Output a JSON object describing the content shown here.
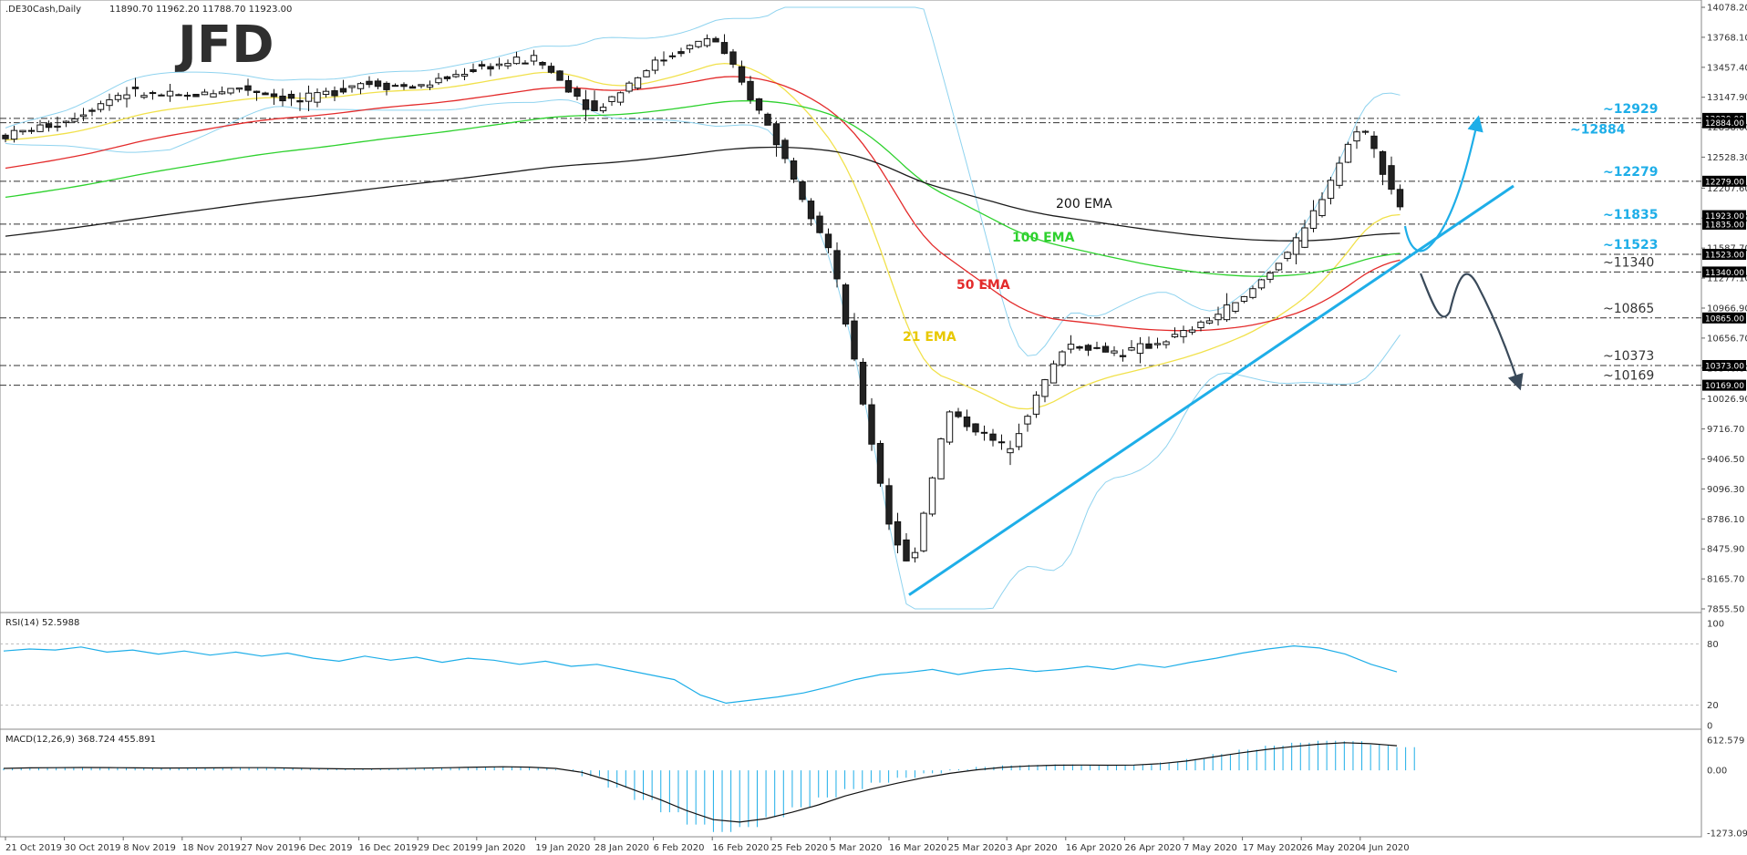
{
  "header": {
    "title": ".DE30Cash,Daily",
    "ohlc": "11890.70 11962.20 11788.70 11923.00",
    "logo": "JFD"
  },
  "colors": {
    "price_line": "#1eaee8",
    "support_line": "#1eaee8",
    "ema21": "#f1e14c",
    "ema50": "#e32b2b",
    "ema100": "#2ed12e",
    "ema200": "#1c1c1c",
    "bollinger": "#8fd3ef",
    "forecast_up": "#1eaee8",
    "forecast_down": "#3a4a5a",
    "label_accent": "#1eaee8",
    "label_dark": "#333333"
  },
  "chart_data": [
    {
      "type": "candlestick",
      "title": ".DE30Cash,Daily",
      "ylim": [
        7855.5,
        14078.2
      ],
      "y_ticks": [
        "14078.20",
        "13768.10",
        "13457.40",
        "13147.90",
        "12838.00",
        "12528.30",
        "12207.60",
        "11897.60",
        "11587.70",
        "11277.10",
        "10966.90",
        "10656.70",
        "10346.80",
        "10026.90",
        "9716.70",
        "9406.50",
        "9096.30",
        "8786.10",
        "8475.90",
        "8165.70",
        "7855.50"
      ],
      "x_ticks": [
        "21 Oct 2019",
        "30 Oct 2019",
        "8 Nov 2019",
        "18 Nov 2019",
        "27 Nov 2019",
        "6 Dec 2019",
        "16 Dec 2019",
        "29 Dec 2019",
        "9 Jan 2020",
        "19 Jan 2020",
        "28 Jan 2020",
        "6 Feb 2020",
        "16 Feb 2020",
        "25 Feb 2020",
        "5 Mar 2020",
        "16 Mar 2020",
        "25 Mar 2020",
        "3 Apr 2020",
        "16 Apr 2020",
        "26 Apr 2020",
        "7 May 2020",
        "17 May 2020",
        "26 May 2020",
        "4 Jun 2020"
      ],
      "price_keypoints": [
        {
          "date": "21 Oct 2019",
          "value": 12750
        },
        {
          "date": "30 Oct 2019",
          "value": 12900
        },
        {
          "date": "8 Nov 2019",
          "value": 13200
        },
        {
          "date": "18 Nov 2019",
          "value": 13150
        },
        {
          "date": "27 Nov 2019",
          "value": 13250
        },
        {
          "date": "6 Dec 2019",
          "value": 13100
        },
        {
          "date": "16 Dec 2019",
          "value": 13300
        },
        {
          "date": "29 Dec 2019",
          "value": 13250
        },
        {
          "date": "9 Jan 2020",
          "value": 13450
        },
        {
          "date": "19 Jan 2020",
          "value": 13550
        },
        {
          "date": "28 Jan 2020",
          "value": 13000
        },
        {
          "date": "6 Feb 2020",
          "value": 13500
        },
        {
          "date": "16 Feb 2020",
          "value": 13780
        },
        {
          "date": "25 Feb 2020",
          "value": 12800
        },
        {
          "date": "5 Mar 2020",
          "value": 11550
        },
        {
          "date": "16 Mar 2020",
          "value": 8750
        },
        {
          "date": "18 Mar 2020",
          "value": 8250
        },
        {
          "date": "25 Mar 2020",
          "value": 9900
        },
        {
          "date": "3 Apr 2020",
          "value": 9500
        },
        {
          "date": "16 Apr 2020",
          "value": 10600
        },
        {
          "date": "26 Apr 2020",
          "value": 10500
        },
        {
          "date": "7 May 2020",
          "value": 10700
        },
        {
          "date": "17 May 2020",
          "value": 11050
        },
        {
          "date": "26 May 2020",
          "value": 11700
        },
        {
          "date": "4 Jun 2020",
          "value": 12900
        },
        {
          "date": "10 Jun 2020",
          "value": 11923
        }
      ],
      "series": [
        {
          "name": "21 EMA",
          "label": "21 EMA"
        },
        {
          "name": "50 EMA",
          "label": "50 EMA"
        },
        {
          "name": "100 EMA",
          "label": "100 EMA"
        },
        {
          "name": "200 EMA",
          "label": "200 EMA"
        }
      ],
      "levels": [
        {
          "value": 12929,
          "label": "~12929",
          "box": "12929.00"
        },
        {
          "value": 12884,
          "label": "~12884",
          "box": "12884.00"
        },
        {
          "value": 12279,
          "label": "~12279",
          "box": "12279.00"
        },
        {
          "value": 11835,
          "label": "~11835",
          "box": "11835.00"
        },
        {
          "value": 11523,
          "label": "~11523",
          "box": "11523.00"
        },
        {
          "value": 11340,
          "label": "~11340",
          "box": "11340.00"
        },
        {
          "value": 10865,
          "label": "~10865",
          "box": "10865.00"
        },
        {
          "value": 10373,
          "label": "~10373",
          "box": "10373.00"
        },
        {
          "value": 10169,
          "label": "~10169",
          "box": "10169.00"
        }
      ],
      "current_price_box": "11923.00",
      "support_trendline": {
        "from": {
          "date": "18 Mar 2020",
          "value": 8000
        },
        "to": {
          "date": "4 Jun 2020+",
          "value": 12230
        }
      }
    },
    {
      "type": "line",
      "title": "RSI(14) 52.5988",
      "ylim": [
        0,
        100
      ],
      "y_ticks": [
        "100",
        "80",
        "20",
        "0"
      ],
      "levels": [
        80,
        20
      ],
      "values": [
        73,
        75,
        74,
        77,
        72,
        74,
        70,
        73,
        69,
        72,
        68,
        71,
        66,
        63,
        68,
        64,
        67,
        62,
        66,
        64,
        60,
        63,
        58,
        60,
        55,
        50,
        45,
        30,
        22,
        25,
        28,
        32,
        38,
        45,
        50,
        52,
        55,
        50,
        54,
        56,
        53,
        55,
        58,
        55,
        60,
        57,
        62,
        66,
        71,
        75,
        78,
        76,
        70,
        60,
        52.6
      ]
    },
    {
      "type": "bar",
      "title": "MACD(12,26,9) 368.724 455.891",
      "ylim": [
        -1273.091,
        612.579
      ],
      "y_ticks": [
        "612.579",
        "0.00",
        "-1273.091"
      ],
      "histogram": [
        40,
        55,
        60,
        62,
        58,
        50,
        45,
        48,
        52,
        60,
        55,
        42,
        30,
        20,
        25,
        35,
        50,
        60,
        70,
        80,
        60,
        20,
        -120,
        -350,
        -600,
        -850,
        -1100,
        -1250,
        -1150,
        -950,
        -750,
        -550,
        -380,
        -250,
        -150,
        -60,
        20,
        70,
        100,
        110,
        120,
        110,
        100,
        115,
        160,
        230,
        330,
        420,
        500,
        560,
        600,
        590,
        520,
        470
      ],
      "signal": [
        40,
        50,
        55,
        58,
        56,
        50,
        47,
        48,
        50,
        55,
        54,
        47,
        38,
        30,
        30,
        35,
        45,
        55,
        65,
        72,
        65,
        40,
        -40,
        -200,
        -400,
        -600,
        -820,
        -1000,
        -1050,
        -980,
        -850,
        -700,
        -520,
        -380,
        -260,
        -150,
        -60,
        10,
        60,
        90,
        105,
        108,
        105,
        108,
        135,
        190,
        270,
        350,
        420,
        480,
        530,
        560,
        540,
        500
      ]
    }
  ],
  "annotations": {
    "ema21_label": "21 EMA",
    "ema50_label": "50 EMA",
    "ema100_label": "100 EMA",
    "ema200_label": "200 EMA",
    "rsi_title": "RSI(14) 52.5988",
    "macd_title": "MACD(12,26,9) 368.724 455.891"
  }
}
